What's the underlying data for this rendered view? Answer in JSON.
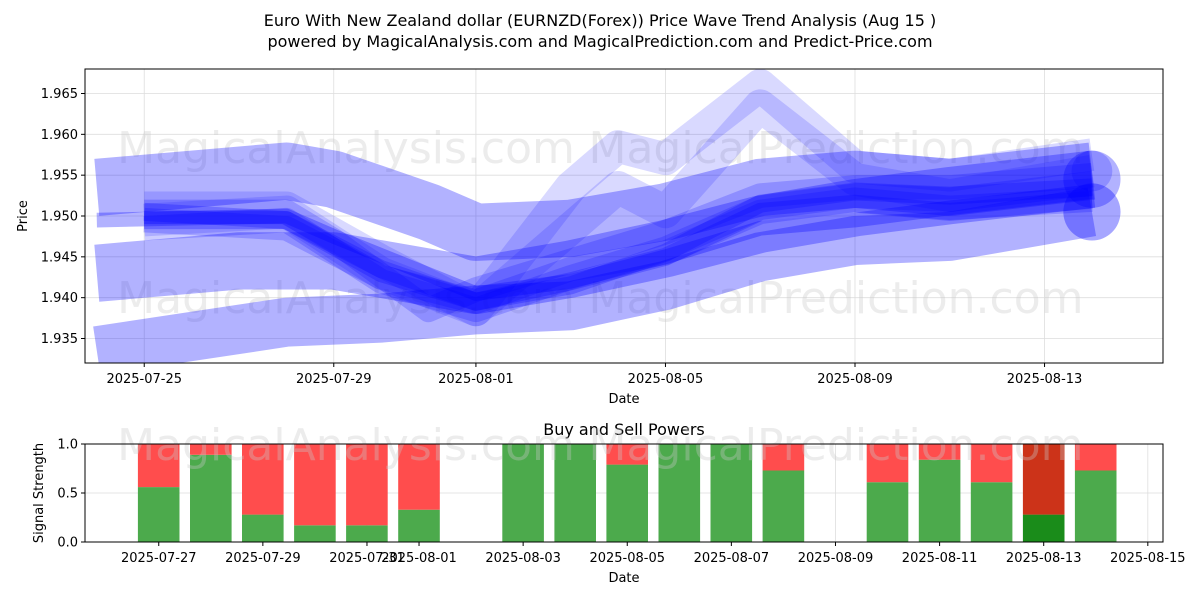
{
  "title_line1": "Euro With New Zealand dollar (EURNZD(Forex)) Price Wave Trend Analysis (Aug 15 )",
  "title_line2": "powered by MagicalAnalysis.com and MagicalPrediction.com and Predict-Price.com",
  "watermarks": [
    "MagicalAnalysis.com",
    "MagicalPrediction.com"
  ],
  "colors": {
    "wave": "#0000ff",
    "buy": "#4caa4c",
    "sell": "#ff4d4d",
    "buy_strong": "#1a8c1a",
    "sell_strong": "#cc3319",
    "grid": "#dddddd"
  },
  "chart_data": [
    {
      "type": "area",
      "title": "",
      "xlabel": "Date",
      "ylabel": "Price",
      "ylim": [
        1.932,
        1.968
      ],
      "xlim": [
        "2025-07-23T18:00",
        "2025-08-15T12:00"
      ],
      "grid": true,
      "x_ticks": [
        "2025-07-25",
        "2025-07-29",
        "2025-08-01",
        "2025-08-05",
        "2025-08-09",
        "2025-08-13"
      ],
      "y_ticks": [
        1.935,
        1.94,
        1.945,
        1.95,
        1.955,
        1.96,
        1.965
      ],
      "series": [
        {
          "alpha": 0.3,
          "width": 0.007,
          "x": [
            "2025-07-24",
            "2025-07-28",
            "2025-07-29",
            "2025-07-31",
            "2025-08-01",
            "2025-08-03",
            "2025-08-05",
            "2025-08-07",
            "2025-08-09",
            "2025-08-11",
            "2025-08-14"
          ],
          "y": [
            1.9535,
            1.9555,
            1.9545,
            1.9505,
            1.948,
            1.9485,
            1.9505,
            1.9535,
            1.9545,
            1.9535,
            1.9555
          ]
        },
        {
          "alpha": 0.3,
          "width": 0.007,
          "x": [
            "2025-07-24",
            "2025-07-27",
            "2025-07-29",
            "2025-07-31",
            "2025-08-01",
            "2025-08-03",
            "2025-08-05",
            "2025-08-07",
            "2025-08-09",
            "2025-08-11",
            "2025-08-14"
          ],
          "y": [
            1.943,
            1.9445,
            1.9445,
            1.9425,
            1.9415,
            1.9435,
            1.946,
            1.949,
            1.951,
            1.9525,
            1.9545
          ]
        },
        {
          "alpha": 0.3,
          "width": 0.006,
          "x": [
            "2025-07-24",
            "2025-07-28",
            "2025-07-30",
            "2025-08-01",
            "2025-08-03",
            "2025-08-05",
            "2025-08-07",
            "2025-08-09",
            "2025-08-11",
            "2025-08-14"
          ],
          "y": [
            1.9335,
            1.937,
            1.9375,
            1.9385,
            1.939,
            1.9415,
            1.945,
            1.947,
            1.9475,
            1.9505
          ]
        },
        {
          "alpha": 0.15,
          "width": 0.004,
          "x": [
            "2025-07-25",
            "2025-07-28",
            "2025-07-30",
            "2025-08-01",
            "2025-08-03",
            "2025-08-04",
            "2025-08-05",
            "2025-08-07",
            "2025-08-09",
            "2025-08-11",
            "2025-08-14"
          ],
          "y": [
            1.951,
            1.951,
            1.9445,
            1.9385,
            1.9535,
            1.9585,
            1.957,
            1.966,
            1.956,
            1.955,
            1.9575
          ]
        },
        {
          "alpha": 0.15,
          "width": 0.004,
          "x": [
            "2025-07-25",
            "2025-07-28",
            "2025-07-30",
            "2025-08-01",
            "2025-08-03",
            "2025-08-04",
            "2025-08-05",
            "2025-08-07",
            "2025-08-09",
            "2025-08-11",
            "2025-08-14"
          ],
          "y": [
            1.9495,
            1.9505,
            1.943,
            1.9385,
            1.9485,
            1.9535,
            1.9505,
            1.9635,
            1.9545,
            1.9525,
            1.9555
          ]
        },
        {
          "alpha": 0.2,
          "width": 0.003,
          "x": [
            "2025-07-25",
            "2025-07-28",
            "2025-07-29",
            "2025-07-31",
            "2025-08-01",
            "2025-08-03",
            "2025-08-05",
            "2025-08-07",
            "2025-08-09",
            "2025-08-11",
            "2025-08-14"
          ],
          "y": [
            1.9505,
            1.9505,
            1.947,
            1.9385,
            1.941,
            1.9445,
            1.948,
            1.9525,
            1.9535,
            1.9535,
            1.955
          ]
        },
        {
          "alpha": 0.2,
          "width": 0.003,
          "x": [
            "2025-07-25",
            "2025-07-28",
            "2025-07-30",
            "2025-08-01",
            "2025-08-03",
            "2025-08-05",
            "2025-08-07",
            "2025-08-09",
            "2025-08-11",
            "2025-08-14"
          ],
          "y": [
            1.9485,
            1.9495,
            1.942,
            1.9385,
            1.9425,
            1.946,
            1.951,
            1.9525,
            1.952,
            1.954
          ]
        },
        {
          "alpha": 0.2,
          "width": 0.003,
          "x": [
            "2025-07-25",
            "2025-07-28",
            "2025-07-30",
            "2025-08-01",
            "2025-08-03",
            "2025-08-05",
            "2025-08-07",
            "2025-08-09",
            "2025-08-11",
            "2025-08-14"
          ],
          "y": [
            1.9495,
            1.9485,
            1.9425,
            1.9395,
            1.9435,
            1.9455,
            1.9505,
            1.952,
            1.951,
            1.952
          ]
        },
        {
          "alpha": 0.25,
          "width": 0.0022,
          "x": [
            "2025-07-25",
            "2025-07-28",
            "2025-07-30",
            "2025-08-01",
            "2025-08-03",
            "2025-08-05",
            "2025-08-07",
            "2025-08-09",
            "2025-08-11",
            "2025-08-14"
          ],
          "y": [
            1.9495,
            1.9495,
            1.9435,
            1.9395,
            1.9415,
            1.9455,
            1.9515,
            1.953,
            1.9525,
            1.9535
          ]
        },
        {
          "alpha": 0.25,
          "width": 0.0022,
          "x": [
            "2025-07-25",
            "2025-07-28",
            "2025-07-30",
            "2025-08-01",
            "2025-08-03",
            "2025-08-05",
            "2025-08-07",
            "2025-08-09",
            "2025-08-11",
            "2025-08-14"
          ],
          "y": [
            1.9505,
            1.9495,
            1.943,
            1.9395,
            1.942,
            1.945,
            1.9505,
            1.9515,
            1.9505,
            1.952
          ]
        },
        {
          "alpha": 0.3,
          "width": 0.0018,
          "x": [
            "2025-07-24",
            "2025-07-28",
            "2025-07-29",
            "2025-08-01",
            "2025-08-03",
            "2025-08-05",
            "2025-08-07",
            "2025-08-09",
            "2025-08-11",
            "2025-08-14"
          ],
          "y": [
            1.9495,
            1.95,
            1.9475,
            1.9405,
            1.942,
            1.945,
            1.9485,
            1.9495,
            1.951,
            1.953
          ]
        }
      ],
      "end_markers": [
        {
          "x": "2025-08-14",
          "y": 1.9505,
          "r": 0.0035,
          "alpha": 0.35
        },
        {
          "x": "2025-08-14",
          "y": 1.9545,
          "r": 0.0035,
          "alpha": 0.3
        },
        {
          "x": "2025-08-14",
          "y": 1.9555,
          "r": 0.0025,
          "alpha": 0.2
        }
      ]
    },
    {
      "type": "bar",
      "title": "Buy and Sell Powers",
      "xlabel": "Date",
      "ylabel": "Signal Strength",
      "ylim": [
        0,
        1
      ],
      "xlim": [
        "2025-07-25T14:00",
        "2025-08-15T07:00"
      ],
      "grid": true,
      "x_ticks": [
        "2025-07-27",
        "2025-07-29",
        "2025-07-31",
        "2025-08-01",
        "2025-08-03",
        "2025-08-05",
        "2025-08-07",
        "2025-08-09",
        "2025-08-11",
        "2025-08-13",
        "2025-08-15"
      ],
      "y_ticks": [
        0.0,
        0.5,
        1.0
      ],
      "categories": [
        "2025-07-27",
        "2025-07-28",
        "2025-07-29",
        "2025-07-30",
        "2025-07-31",
        "2025-08-01",
        "2025-08-03",
        "2025-08-04",
        "2025-08-05",
        "2025-08-06",
        "2025-08-07",
        "2025-08-08",
        "2025-08-10",
        "2025-08-11",
        "2025-08-12",
        "2025-08-13",
        "2025-08-14"
      ],
      "series": [
        {
          "values": [
            0.56,
            0.89,
            0.28,
            0.17,
            0.17,
            0.33,
            1.0,
            1.0,
            0.79,
            1.0,
            1.0,
            0.73,
            0.61,
            0.84,
            0.61,
            0.28,
            0.73
          ]
        },
        {
          "values": [
            0.44,
            0.11,
            0.72,
            0.83,
            0.83,
            0.67,
            0.0,
            0.0,
            0.21,
            0.0,
            0.0,
            0.27,
            0.39,
            0.16,
            0.39,
            0.72,
            0.27
          ]
        }
      ],
      "strong_index": 15
    }
  ]
}
